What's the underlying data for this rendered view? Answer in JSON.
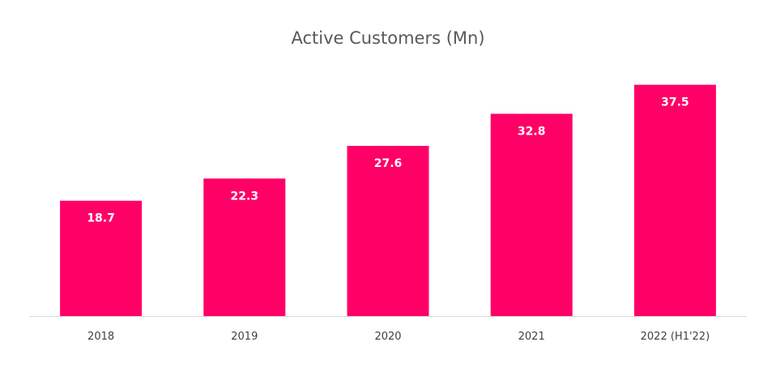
{
  "chart_data": {
    "type": "bar",
    "title": "Active Customers (Mn)",
    "categories": [
      "2018",
      "2019",
      "2020",
      "2021",
      "2022 (H1'22)"
    ],
    "values": [
      18.7,
      22.3,
      27.6,
      32.8,
      37.5
    ],
    "data_labels": [
      "18.7",
      "22.3",
      "27.6",
      "32.8",
      "37.5"
    ],
    "xlabel": "",
    "ylabel": "",
    "ylim": [
      0,
      40
    ],
    "grid": false,
    "legend": "none",
    "bar_color": "#FF0066",
    "axis_color": "#D9D9D9"
  }
}
